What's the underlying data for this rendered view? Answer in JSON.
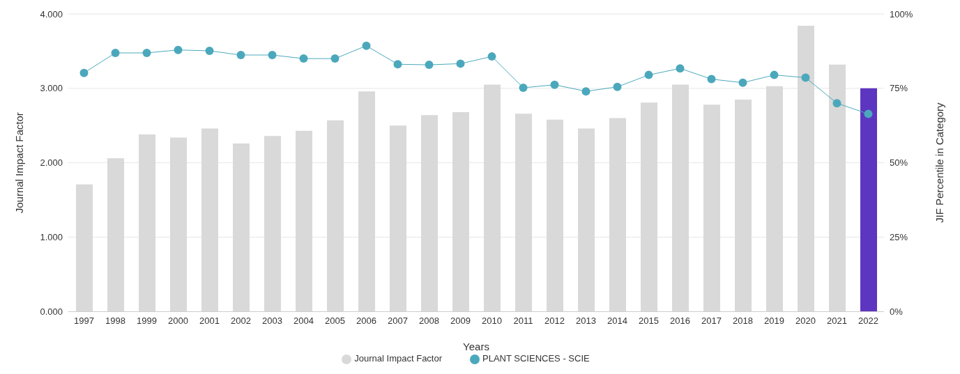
{
  "chart_data": {
    "type": "bar",
    "xlabel": "Years",
    "ylabel": "Journal Impact Factor",
    "y2label": "JIF Percentile in Category",
    "categories": [
      "1997",
      "1998",
      "1999",
      "2000",
      "2001",
      "2002",
      "2003",
      "2004",
      "2005",
      "2006",
      "2007",
      "2008",
      "2009",
      "2010",
      "2011",
      "2012",
      "2013",
      "2014",
      "2015",
      "2016",
      "2017",
      "2018",
      "2019",
      "2020",
      "2021",
      "2022"
    ],
    "series": [
      {
        "name": "Journal Impact Factor",
        "color": "#d9d9d9",
        "colors": [
          "#d9d9d9",
          "#d9d9d9",
          "#d9d9d9",
          "#d9d9d9",
          "#d9d9d9",
          "#d9d9d9",
          "#d9d9d9",
          "#d9d9d9",
          "#d9d9d9",
          "#d9d9d9",
          "#d9d9d9",
          "#d9d9d9",
          "#d9d9d9",
          "#d9d9d9",
          "#d9d9d9",
          "#d9d9d9",
          "#d9d9d9",
          "#d9d9d9",
          "#d9d9d9",
          "#d9d9d9",
          "#d9d9d9",
          "#d9d9d9",
          "#d9d9d9",
          "#d9d9d9",
          "#d9d9d9",
          "#5c35c0"
        ],
        "values": [
          1.71,
          2.06,
          2.38,
          2.34,
          2.46,
          2.26,
          2.36,
          2.43,
          2.57,
          2.96,
          2.5,
          2.64,
          2.68,
          3.05,
          2.66,
          2.58,
          2.46,
          2.6,
          2.81,
          3.05,
          2.78,
          2.85,
          3.03,
          3.84,
          3.32,
          3.0
        ]
      },
      {
        "name": "PLANT SCIENCES - SCIE",
        "type": "line",
        "axis": "y2",
        "color": "#4ba8bc",
        "values": [
          80.2,
          86.9,
          86.9,
          87.9,
          87.6,
          86.2,
          86.2,
          85,
          85,
          89.3,
          83.1,
          82.9,
          83.3,
          85.7,
          75.2,
          76.2,
          74,
          75.5,
          79.5,
          81.7,
          78.1,
          76.9,
          79.5,
          78.6,
          70,
          66.4
        ]
      }
    ],
    "ylim": [
      0,
      4
    ],
    "yticks": [
      {
        "value": 0,
        "label": "0.000"
      },
      {
        "value": 1,
        "label": "1.000"
      },
      {
        "value": 2,
        "label": "2.000"
      },
      {
        "value": 3,
        "label": "3.000"
      },
      {
        "value": 4,
        "label": "4.000"
      }
    ],
    "y2lim": [
      0,
      100
    ],
    "y2ticks": [
      {
        "value": 0,
        "label": "0%"
      },
      {
        "value": 25,
        "label": "25%"
      },
      {
        "value": 50,
        "label": "50%"
      },
      {
        "value": 75,
        "label": "75%"
      },
      {
        "value": 100,
        "label": "100%"
      }
    ],
    "grid": "y",
    "legend": "bottom",
    "marker": "circle",
    "line_style": "solid"
  }
}
